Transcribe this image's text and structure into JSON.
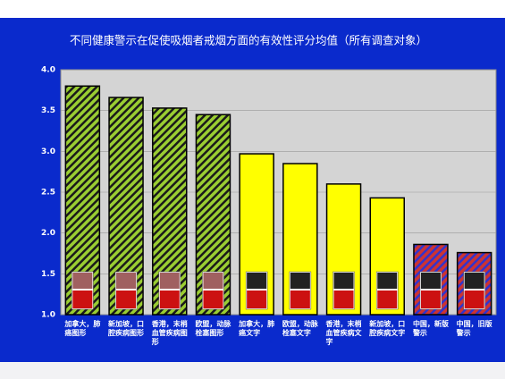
{
  "chart_data": {
    "type": "bar",
    "title": "不同健康警示在促使吸烟者戒烟方面的有效性评分均值（所有调查对象）",
    "categories": [
      "加拿大，肺癌图形",
      "新加坡，口腔疾病图形",
      "香港，末梢血管疾病图形",
      "欧盟，动脉栓塞图形",
      "加拿大，肺癌文字",
      "欧盟，动脉栓塞文字",
      "香港，末梢血管疾病文字",
      "新加坡，口腔疾病文字",
      "中国，新版警示",
      "中国，旧版警示"
    ],
    "values": [
      3.8,
      3.66,
      3.53,
      3.45,
      2.97,
      2.85,
      2.6,
      2.43,
      1.86,
      1.76
    ],
    "colors": [
      "#9acd32",
      "#9acd32",
      "#9acd32",
      "#9acd32",
      "#ffff00",
      "#ffff00",
      "#ffff00",
      "#ffff00",
      "#cc3333",
      "#cc3333"
    ],
    "hatch": [
      "#1a1a1a",
      "#1a1a1a",
      "#1a1a1a",
      "#1a1a1a",
      null,
      null,
      null,
      null,
      "#3333cc",
      "#3333cc"
    ],
    "ylim": [
      1,
      4
    ],
    "yticks": [
      {
        "value": 1,
        "label": "1.0"
      },
      {
        "value": 1.5,
        "label": "1.5"
      },
      {
        "value": 2,
        "label": "2.0"
      },
      {
        "value": 2.5,
        "label": "2.5"
      },
      {
        "value": 3,
        "label": "3.0"
      },
      {
        "value": 3.5,
        "label": "3.5"
      },
      {
        "value": 4,
        "label": "4.0"
      }
    ],
    "grid": true
  }
}
